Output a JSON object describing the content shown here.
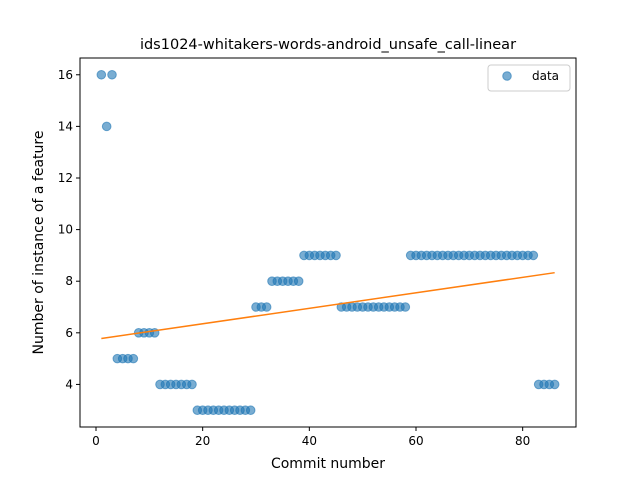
{
  "chart_data": {
    "type": "scatter",
    "title": "ids1024-whitakers-words-android_unsafe_call-linear",
    "xlabel": "Commit number",
    "ylabel": "Number of instance of a feature",
    "xlim": [
      -3,
      90
    ],
    "ylim": [
      2.35,
      16.65
    ],
    "xticks": [
      0,
      20,
      40,
      60,
      80
    ],
    "yticks": [
      4,
      6,
      8,
      10,
      12,
      14,
      16
    ],
    "grid": false,
    "legend_position": "top-right",
    "colors": {
      "data": "#1f77b4",
      "fit": "#ff7f0e"
    },
    "series": [
      {
        "name": "data",
        "kind": "scatter",
        "x": [
          1,
          2,
          3,
          4,
          5,
          6,
          7,
          8,
          9,
          10,
          11,
          12,
          13,
          14,
          15,
          16,
          17,
          18,
          19,
          20,
          21,
          22,
          23,
          24,
          25,
          26,
          27,
          28,
          29,
          30,
          31,
          32,
          33,
          34,
          35,
          36,
          37,
          38,
          39,
          40,
          41,
          42,
          43,
          44,
          45,
          46,
          47,
          48,
          49,
          50,
          51,
          52,
          53,
          54,
          55,
          56,
          57,
          58,
          59,
          60,
          61,
          62,
          63,
          64,
          65,
          66,
          67,
          68,
          69,
          70,
          71,
          72,
          73,
          74,
          75,
          76,
          77,
          78,
          79,
          80,
          81,
          82,
          83,
          84,
          85,
          86
        ],
        "y": [
          16,
          14,
          16,
          5,
          5,
          5,
          5,
          6,
          6,
          6,
          6,
          4,
          4,
          4,
          4,
          4,
          4,
          4,
          3,
          3,
          3,
          3,
          3,
          3,
          3,
          3,
          3,
          3,
          3,
          7,
          7,
          7,
          8,
          8,
          8,
          8,
          8,
          8,
          9,
          9,
          9,
          9,
          9,
          9,
          9,
          7,
          7,
          7,
          7,
          7,
          7,
          7,
          7,
          7,
          7,
          7,
          7,
          7,
          9,
          9,
          9,
          9,
          9,
          9,
          9,
          9,
          9,
          9,
          9,
          9,
          9,
          9,
          9,
          9,
          9,
          9,
          9,
          9,
          9,
          9,
          9,
          9,
          4,
          4,
          4,
          4
        ]
      },
      {
        "name": "",
        "kind": "line",
        "x": [
          1,
          86
        ],
        "y": [
          5.78,
          8.33
        ]
      }
    ],
    "legend": [
      {
        "label": "data"
      }
    ]
  }
}
